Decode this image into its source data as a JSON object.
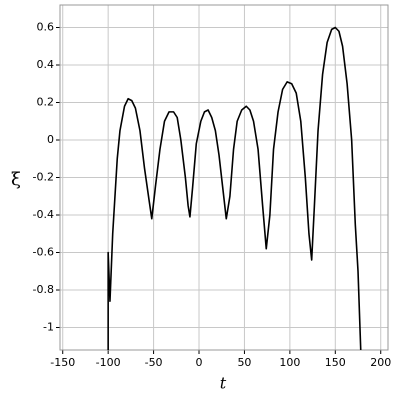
{
  "chart_data": {
    "type": "line",
    "x_label": "t",
    "y_label": "ξ",
    "x": [
      -100,
      -100,
      -98,
      -95,
      -90,
      -87,
      -82,
      -78,
      -74,
      -70,
      -65,
      -60,
      -55,
      -52,
      -48,
      -43,
      -38,
      -33,
      -28,
      -24,
      -20,
      -15,
      -12,
      -10,
      -7,
      -3,
      2,
      6,
      10,
      14,
      18,
      22,
      26,
      30,
      34,
      38,
      42,
      47,
      52,
      56,
      60,
      65,
      70,
      74,
      78,
      82,
      87,
      92,
      97,
      102,
      107,
      112,
      117,
      121,
      124,
      127,
      131,
      136,
      141,
      146,
      150,
      154,
      158,
      163,
      168,
      172,
      175,
      178
    ],
    "series": [
      {
        "color": "#000000",
        "values": [
          -1.12,
          -0.6,
          -0.86,
          -0.5,
          -0.1,
          0.05,
          0.18,
          0.22,
          0.21,
          0.17,
          0.05,
          -0.15,
          -0.32,
          -0.42,
          -0.25,
          -0.05,
          0.1,
          0.15,
          0.15,
          0.12,
          0.0,
          -0.2,
          -0.35,
          -0.41,
          -0.25,
          -0.02,
          0.1,
          0.15,
          0.16,
          0.12,
          0.05,
          -0.08,
          -0.25,
          -0.42,
          -0.3,
          -0.05,
          0.1,
          0.16,
          0.18,
          0.16,
          0.1,
          -0.05,
          -0.35,
          -0.58,
          -0.4,
          -0.05,
          0.15,
          0.27,
          0.31,
          0.3,
          0.25,
          0.1,
          -0.2,
          -0.5,
          -0.64,
          -0.35,
          0.05,
          0.35,
          0.52,
          0.59,
          0.6,
          0.58,
          0.5,
          0.3,
          0.0,
          -0.45,
          -0.7,
          -1.12
        ]
      }
    ],
    "xlim": [
      -153,
      208
    ],
    "ylim": [
      -1.12,
      0.72
    ],
    "xticks": [
      -150,
      -100,
      -50,
      0,
      50,
      100,
      150,
      200
    ],
    "yticks": [
      -1,
      -0.8,
      -0.6,
      -0.4,
      -0.2,
      0,
      0.2,
      0.4,
      0.6
    ],
    "grid": true
  }
}
